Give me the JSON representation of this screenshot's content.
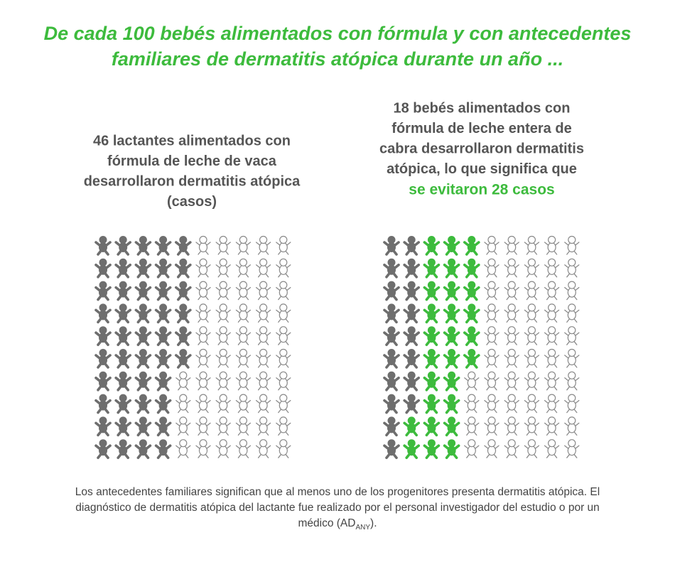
{
  "chart_data": {
    "type": "pictograph",
    "title": [
      "De cada 100 bebés alimentados con fórmula y con antecedentes",
      "familiares de dermatitis atópica durante un año ..."
    ],
    "total": 100,
    "colors": {
      "cases": "#6e6e6e",
      "avoided": "#3dbb3d",
      "outline": "#8a8a8a",
      "title": "#3dbb3d"
    },
    "panels": [
      {
        "caption": [
          "46 lactantes alimentados con",
          "fórmula de leche de vaca",
          "desarrollaron dermatitis atópica",
          "(casos)"
        ],
        "cases": 46
      },
      {
        "caption": [
          "18 bebés alimentados con",
          "fórmula de leche entera de",
          "cabra desarrollaron dermatitis",
          "atópica, lo que significa que"
        ],
        "highlight": "se evitaron 28 casos",
        "cases": 18,
        "avoided": 28
      }
    ],
    "footnote": {
      "text": "Los antecedentes familiares significan que al menos uno de los progenitores presenta dermatitis atópica. El diagnóstico de dermatitis atópica del lactante fue realizado por el personal investigador del estudio o por un médico (AD",
      "subscript": "ANY",
      "after": ")."
    }
  }
}
